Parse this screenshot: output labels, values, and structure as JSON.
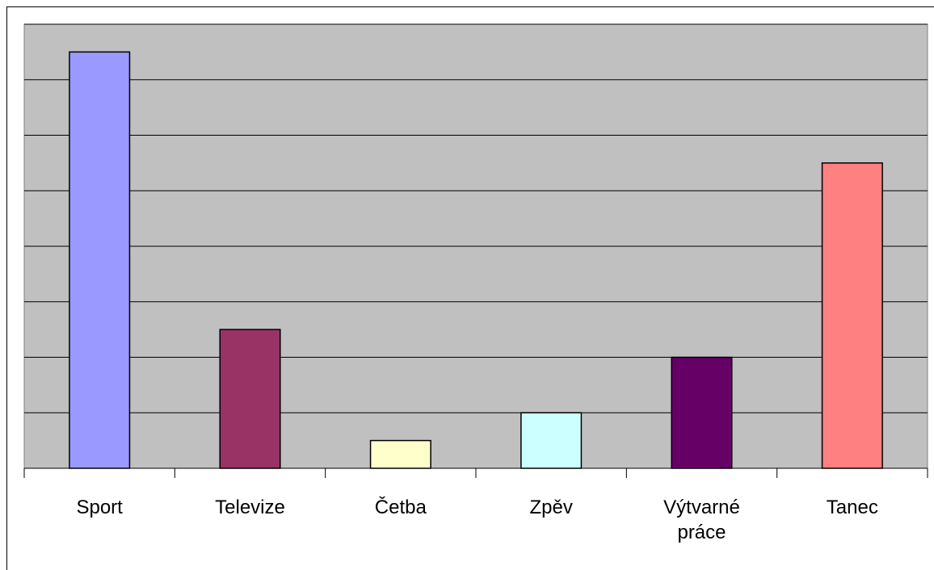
{
  "chart_data": {
    "type": "bar",
    "categories": [
      "Sport",
      "Televize",
      "Četba",
      "Zpěv",
      "Výtvarné práce",
      "Tanec"
    ],
    "values": [
      7.5,
      2.5,
      0.5,
      1,
      2,
      5.5
    ],
    "colors": [
      "#9999ff",
      "#993366",
      "#ffffcc",
      "#ccffff",
      "#660066",
      "#ff8080"
    ],
    "ylim": [
      0,
      8
    ],
    "yticks": [
      0,
      1,
      2,
      3,
      4,
      5,
      6,
      7,
      8
    ],
    "grid": true
  }
}
